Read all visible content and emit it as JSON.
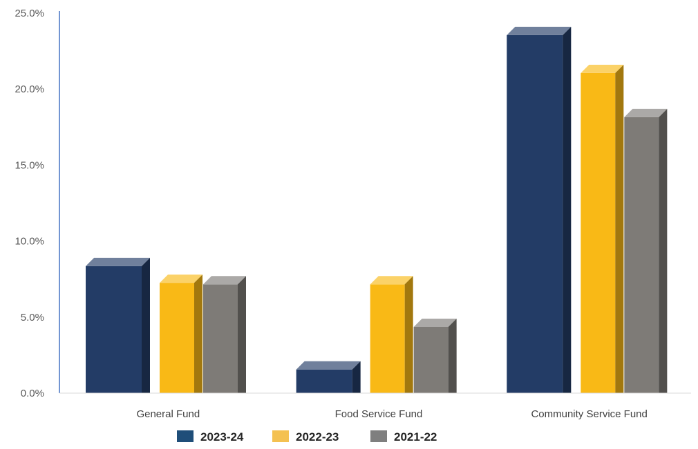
{
  "chart_data": {
    "type": "bar",
    "categories": [
      "General Fund",
      "Food Service Fund",
      "Community Service Fund"
    ],
    "series": [
      {
        "name": "2023-24",
        "values": [
          8.9,
          2.1,
          24.1
        ]
      },
      {
        "name": "2022-23",
        "values": [
          7.8,
          7.7,
          21.6
        ]
      },
      {
        "name": "2021-22",
        "values": [
          7.7,
          4.9,
          18.7
        ]
      }
    ],
    "ylim": [
      0,
      25
    ],
    "yticks": [
      "0.0%",
      "5.0%",
      "10.0%",
      "15.0%",
      "20.0%",
      "25.0%"
    ],
    "ytick_values": [
      0,
      5,
      10,
      15,
      20,
      25
    ],
    "grid": false,
    "legend_position": "bottom",
    "style": "3d-bevel"
  },
  "colors": {
    "2023-24": "#233C66",
    "2022-23": "#F9B916",
    "2021-22": "#7E7B77",
    "legend_2023-24": "#1F4E79",
    "legend_2022-23": "#F4C151",
    "legend_2021-22": "#7F7F7F",
    "axis": "#4472C4"
  }
}
